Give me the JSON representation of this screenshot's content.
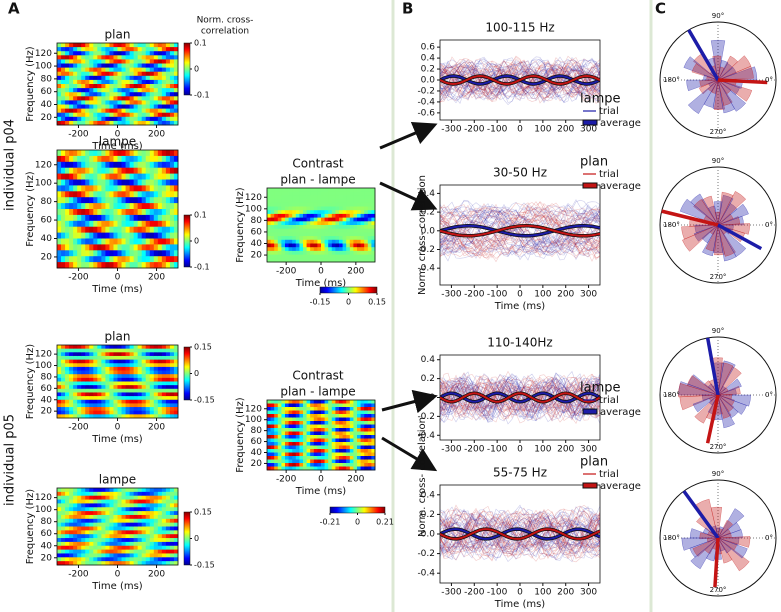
{
  "figure": {
    "panel_labels": [
      "A",
      "B",
      "C"
    ],
    "row_labels": [
      "individual p04",
      "individual p05"
    ],
    "colorbar_title": [
      "Norm. cross-",
      "correlation"
    ],
    "heatmap_xlabel": "Time (ms)",
    "heatmap_ylabel": "Frequency (Hz)",
    "trace_xlabel": "Time (ms)",
    "trace_ylabel": "Norm. cross- correlation"
  },
  "heatmaps": [
    {
      "title": [
        "plan"
      ],
      "xlim": [
        -310,
        310
      ],
      "xticks": [
        -200,
        0,
        200
      ],
      "ylim": [
        8,
        136
      ],
      "yticks": [
        20,
        40,
        60,
        80,
        100,
        120
      ],
      "clim": [
        -0.1,
        0.1
      ],
      "cticks": [
        0.1,
        0,
        -0.1
      ]
    },
    {
      "title": [
        "lampe"
      ],
      "xlim": [
        -310,
        310
      ],
      "xticks": [
        -200,
        0,
        200
      ],
      "ylim": [
        8,
        136
      ],
      "yticks": [
        20,
        40,
        60,
        80,
        100,
        120
      ],
      "clim": [
        -0.1,
        0.1
      ],
      "cticks": [
        0.1,
        0,
        -0.1
      ]
    },
    {
      "title": [
        "Contrast",
        "plan - lampe"
      ],
      "xlim": [
        -310,
        310
      ],
      "xticks": [
        -200,
        0,
        200
      ],
      "ylim": [
        8,
        136
      ],
      "yticks": [
        20,
        40,
        60,
        80,
        100,
        120
      ],
      "clim": [
        -0.15,
        0.15
      ],
      "cticks": [
        -0.15,
        0,
        0.15
      ]
    },
    {
      "title": [
        "plan"
      ],
      "xlim": [
        -310,
        310
      ],
      "xticks": [
        -200,
        0,
        200
      ],
      "ylim": [
        8,
        136
      ],
      "yticks": [
        20,
        40,
        60,
        80,
        100,
        120
      ],
      "clim": [
        -0.15,
        0.15
      ],
      "cticks": [
        0.15,
        0,
        -0.15
      ]
    },
    {
      "title": [
        "lampe"
      ],
      "xlim": [
        -310,
        310
      ],
      "xticks": [
        -200,
        0,
        200
      ],
      "ylim": [
        8,
        136
      ],
      "yticks": [
        20,
        40,
        60,
        80,
        100,
        120
      ],
      "clim": [
        -0.15,
        0.15
      ],
      "cticks": [
        0.15,
        0,
        -0.15
      ]
    },
    {
      "title": [
        "Contrast",
        "plan - lampe"
      ],
      "xlim": [
        -310,
        310
      ],
      "xticks": [
        -200,
        0,
        200
      ],
      "ylim": [
        8,
        136
      ],
      "yticks": [
        20,
        40,
        60,
        80,
        100,
        120
      ],
      "clim": [
        -0.21,
        0.21
      ],
      "cticks": [
        -0.21,
        0,
        0.21
      ]
    }
  ],
  "traces": [
    {
      "title": "100-115 Hz",
      "xlim": [
        -350,
        350
      ],
      "xticks": [
        -300,
        -200,
        -100,
        0,
        100,
        200,
        300
      ],
      "ylim": [
        -0.73,
        0.73
      ],
      "yticks": [
        -0.6,
        -0.4,
        -0.2,
        {
          "value": 0,
          "label": "0.0"
        },
        0.2,
        0.4,
        0.6
      ]
    },
    {
      "title": "30-50  Hz",
      "xlim": [
        -350,
        350
      ],
      "xticks": [
        -300,
        -200,
        -100,
        0,
        100,
        200,
        300
      ],
      "ylim": [
        -0.58,
        0.49
      ],
      "yticks": [
        -0.4,
        -0.2,
        {
          "value": 0,
          "label": "0.0"
        },
        0.2,
        0.4
      ]
    },
    {
      "title": "110-140Hz",
      "xlim": [
        -350,
        350
      ],
      "xticks": [
        -300,
        -200,
        -100,
        0,
        100,
        200,
        300
      ],
      "ylim": [
        -0.45,
        0.45
      ],
      "yticks": [
        -0.4,
        -0.2,
        {
          "value": 0,
          "label": "0.0"
        },
        0.2,
        0.4
      ]
    },
    {
      "title": "55-75  Hz",
      "xlim": [
        -350,
        350
      ],
      "xticks": [
        -300,
        -200,
        -100,
        0,
        100,
        200,
        300
      ],
      "ylim": [
        -0.5,
        0.5
      ],
      "yticks": [
        -0.4,
        -0.2,
        {
          "value": 0,
          "label": "0.0"
        },
        0.2,
        0.4
      ]
    }
  ],
  "legends": [
    {
      "name": "lampe",
      "color": "#1c1ca8",
      "entries": [
        "trial",
        "average"
      ]
    },
    {
      "name": "plan",
      "color": "#c41414",
      "entries": [
        "trial",
        "average"
      ]
    }
  ],
  "polar": {
    "angle_labels": [
      "90°",
      "180°",
      "0°",
      "270°"
    ]
  }
}
